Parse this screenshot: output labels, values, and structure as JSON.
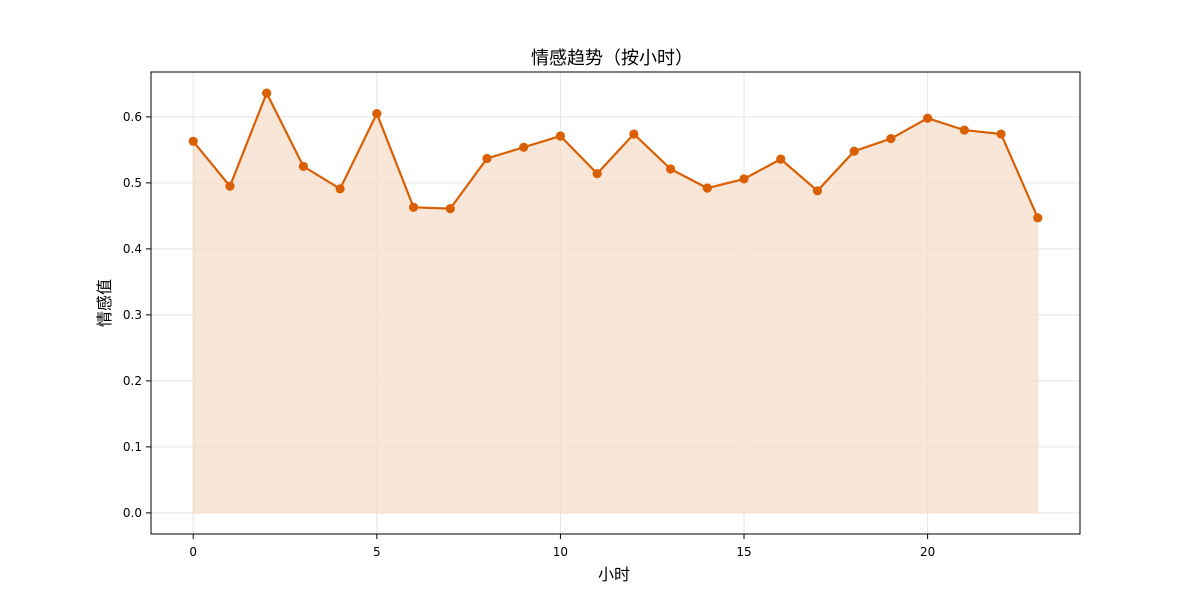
{
  "chart_data": {
    "type": "area",
    "title": "情感趋势（按小时）",
    "xlabel": "小时",
    "ylabel": "情感值",
    "x": [
      0,
      1,
      2,
      3,
      4,
      5,
      6,
      7,
      8,
      9,
      10,
      11,
      12,
      13,
      14,
      15,
      16,
      17,
      18,
      19,
      20,
      21,
      22,
      23
    ],
    "series": [
      {
        "values": [
          0.563,
          0.495,
          0.636,
          0.525,
          0.491,
          0.605,
          0.463,
          0.461,
          0.537,
          0.554,
          0.571,
          0.514,
          0.574,
          0.521,
          0.492,
          0.506,
          0.536,
          0.488,
          0.548,
          0.567,
          0.598,
          0.58,
          0.574,
          0.447
        ],
        "color": "#d95f02",
        "fill_color": "#f5ddcb"
      }
    ],
    "xlim": [
      -1.15,
      24.15
    ],
    "ylim": [
      -0.032,
      0.668
    ],
    "xticks": [
      0,
      5,
      10,
      15,
      20
    ],
    "yticks": [
      0.0,
      0.1,
      0.2,
      0.3,
      0.4,
      0.5,
      0.6
    ],
    "ytick_labels": [
      "0.0",
      "0.1",
      "0.2",
      "0.3",
      "0.4",
      "0.5",
      "0.6"
    ],
    "grid": true,
    "legend": "none"
  }
}
